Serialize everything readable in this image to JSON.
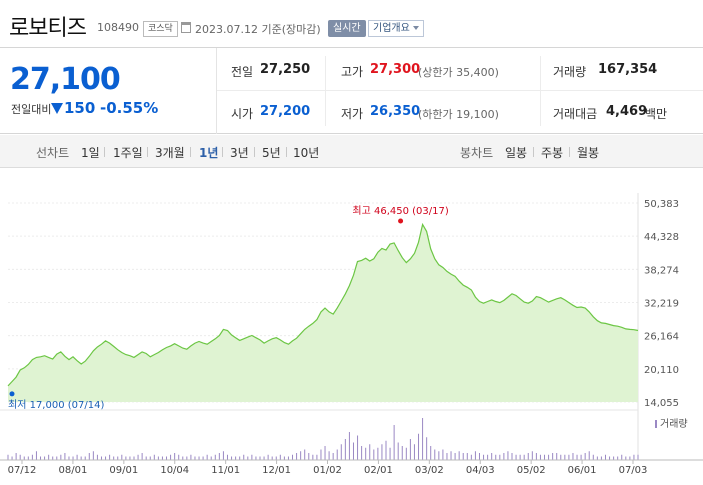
{
  "header": {
    "stock_name": "로보티즈",
    "stock_code": "108490",
    "market": "코스닥",
    "as_of": "2023.07.12 기준(장마감)",
    "realtime_badge": "실시간",
    "info_button": "기업개요"
  },
  "summary": {
    "price": "27,100",
    "change_label": "전일대비",
    "change_value": "150",
    "change_rate": "-0.55%",
    "prev_close": {
      "label": "전일",
      "value": "27,250"
    },
    "high": {
      "label": "고가",
      "value": "27,300",
      "limit_label": "(상한가 35,400)"
    },
    "volume": {
      "label": "거래량",
      "value": "167,354"
    },
    "open": {
      "label": "시가",
      "value": "27,200"
    },
    "low": {
      "label": "저가",
      "value": "26,350",
      "limit_label": "(하한가 19,100)"
    },
    "amount": {
      "label": "거래대금",
      "value": "4,469",
      "unit": "백만"
    }
  },
  "tabs": {
    "line_chart_label": "선차트",
    "periods": [
      "1일",
      "1주일",
      "3개월",
      "1년",
      "3년",
      "5년",
      "10년"
    ],
    "selected_period": "1년",
    "candle_chart_label": "봉차트",
    "candle_periods": [
      "일봉",
      "주봉",
      "월봉"
    ]
  },
  "colors": {
    "up": "#e0141e",
    "down": "#0a5fd1",
    "line": "#6cc644",
    "area": "#dff3d2",
    "volume_bar": "#9a88c4"
  },
  "chart_data": {
    "type": "area",
    "y_ticks": [
      "50,383",
      "44,328",
      "38,274",
      "32,219",
      "26,164",
      "20,110",
      "14,055"
    ],
    "ylim": [
      14055,
      50383
    ],
    "x_ticks": [
      "07/12",
      "08/01",
      "09/01",
      "10/04",
      "11/01",
      "12/01",
      "01/02",
      "02/01",
      "03/02",
      "04/03",
      "05/02",
      "06/01",
      "07/03"
    ],
    "max_label": "최고 46,450 (03/17)",
    "min_label": "최저 17,000 (07/14)",
    "max": {
      "value": 46450,
      "date": "03/17"
    },
    "min": {
      "value": 17000,
      "date": "07/14"
    },
    "volume_label": "거래량",
    "series": [
      {
        "values": [
          17000,
          17800,
          18600,
          19900,
          20300,
          20900,
          21800,
          22200,
          22300,
          22500,
          22200,
          21900,
          22800,
          23200,
          22400,
          21800,
          22300,
          21600,
          21000,
          21500,
          22400,
          23400,
          24100,
          24600,
          25200,
          24800,
          24200,
          23600,
          23100,
          22700,
          22500,
          22200,
          22700,
          23200,
          22900,
          22300,
          22700,
          23100,
          23600,
          24000,
          24300,
          24700,
          24300,
          23900,
          23700,
          24300,
          24800,
          25100,
          24800,
          24600,
          25100,
          25600,
          26200,
          27300,
          27100,
          26300,
          25800,
          25300,
          25600,
          25900,
          26200,
          25800,
          25400,
          24800,
          25200,
          25600,
          25800,
          25400,
          24900,
          24600,
          25200,
          25700,
          26500,
          27300,
          27900,
          28400,
          29100,
          30500,
          31200,
          30500,
          30100,
          31200,
          32500,
          33800,
          35300,
          37200,
          39700,
          39900,
          40300,
          39800,
          40200,
          41400,
          42100,
          41800,
          42900,
          43100,
          41700,
          40400,
          39500,
          40200,
          41200,
          43200,
          46450,
          45200,
          42000,
          40200,
          39100,
          38600,
          37900,
          37400,
          37000,
          36100,
          35400,
          35000,
          34500,
          33200,
          32400,
          32100,
          32400,
          32700,
          32400,
          32200,
          32600,
          33200,
          33800,
          33500,
          32900,
          32300,
          32100,
          32500,
          33300,
          33100,
          32700,
          32300,
          32600,
          32900,
          33100,
          32700,
          32200,
          31700,
          31300,
          31400,
          31200,
          30500,
          29600,
          28900,
          28500,
          28400,
          28200,
          28000,
          27900,
          27700,
          27400,
          27300,
          27250,
          27100
        ]
      }
    ],
    "volume": [
      3,
      2,
      4,
      3,
      2,
      2,
      3,
      5,
      2,
      2,
      3,
      2,
      2,
      3,
      4,
      2,
      2,
      3,
      2,
      2,
      4,
      5,
      3,
      2,
      2,
      3,
      2,
      2,
      3,
      2,
      2,
      2,
      3,
      4,
      2,
      2,
      3,
      2,
      2,
      2,
      3,
      4,
      3,
      2,
      2,
      3,
      2,
      2,
      2,
      3,
      2,
      3,
      4,
      5,
      3,
      2,
      2,
      2,
      3,
      2,
      3,
      2,
      2,
      2,
      3,
      2,
      2,
      3,
      2,
      2,
      3,
      4,
      5,
      6,
      4,
      3,
      3,
      6,
      8,
      5,
      4,
      6,
      9,
      12,
      16,
      10,
      14,
      8,
      7,
      9,
      6,
      7,
      9,
      11,
      7,
      20,
      10,
      8,
      7,
      12,
      9,
      15,
      24,
      13,
      8,
      6,
      5,
      6,
      4,
      5,
      4,
      5,
      4,
      4,
      3,
      5,
      4,
      3,
      3,
      4,
      3,
      3,
      4,
      5,
      4,
      3,
      3,
      3,
      4,
      5,
      4,
      3,
      3,
      3,
      4,
      4,
      3,
      3,
      3,
      4,
      3,
      3,
      4,
      5,
      3,
      2,
      2,
      3,
      2,
      2,
      2,
      3,
      2,
      2,
      3,
      3
    ]
  }
}
